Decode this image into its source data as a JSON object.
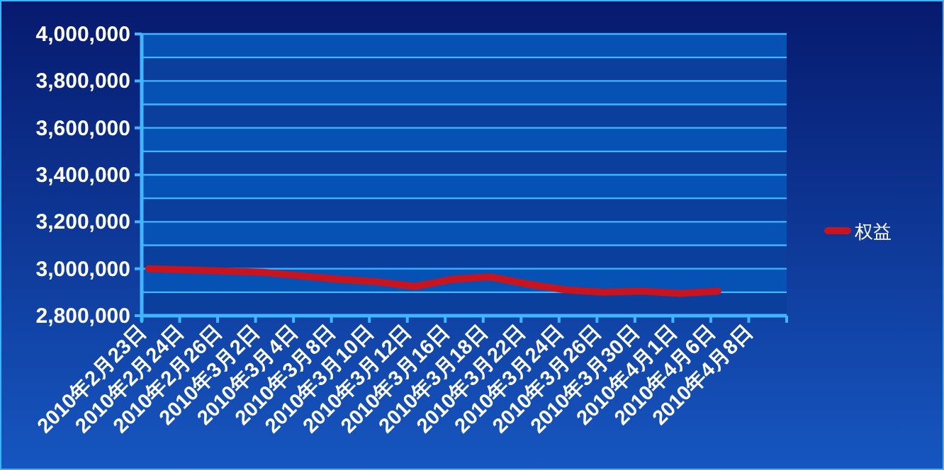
{
  "chart_data": {
    "type": "line",
    "categories": [
      "2010年2月23日",
      "2010年2月24日",
      "2010年2月26日",
      "2010年3月2日",
      "2010年3月4日",
      "2010年3月8日",
      "2010年3月10日",
      "2010年3月12日",
      "2010年3月16日",
      "2010年3月18日",
      "2010年3月22日",
      "2010年3月24日",
      "2010年3月26日",
      "2010年3月30日",
      "2010年4月1日",
      "2010年4月6日",
      "2010年4月8日"
    ],
    "series": [
      {
        "name": "权益",
        "color": "#c8141e",
        "values": [
          3000000,
          2995000,
          2990000,
          2985000,
          2970000,
          2955000,
          2945000,
          2925000,
          2955000,
          2965000,
          2935000,
          2910000,
          2900000,
          2905000,
          2895000,
          2905000,
          null
        ]
      }
    ],
    "ylim": [
      2800000,
      4000000
    ],
    "yticks": [
      {
        "value": 2800000,
        "label": "2,800,000"
      },
      {
        "value": 2900000,
        "label": null
      },
      {
        "value": 3000000,
        "label": "3,000,000"
      },
      {
        "value": 3100000,
        "label": null
      },
      {
        "value": 3200000,
        "label": "3,200,000"
      },
      {
        "value": 3300000,
        "label": null
      },
      {
        "value": 3400000,
        "label": "3,400,000"
      },
      {
        "value": 3500000,
        "label": null
      },
      {
        "value": 3600000,
        "label": "3,600,000"
      },
      {
        "value": 3700000,
        "label": null
      },
      {
        "value": 3800000,
        "label": "3,800,000"
      },
      {
        "value": 3900000,
        "label": null
      },
      {
        "value": 4000000,
        "label": "4,000,000"
      }
    ],
    "bands": [
      {
        "axis": "y",
        "from": 2800000,
        "to": 2900000,
        "color": "#0a3f9e"
      },
      {
        "axis": "y",
        "from": 2900000,
        "to": 3000000,
        "color": "#0552b4"
      },
      {
        "axis": "y",
        "from": 3000000,
        "to": 3100000,
        "color": "#0a3f9e"
      },
      {
        "axis": "y",
        "from": 3100000,
        "to": 3200000,
        "color": "#0552b4"
      },
      {
        "axis": "y",
        "from": 3200000,
        "to": 3300000,
        "color": "#0a3f9e"
      },
      {
        "axis": "y",
        "from": 3300000,
        "to": 3400000,
        "color": "#0552b4"
      },
      {
        "axis": "y",
        "from": 3400000,
        "to": 3500000,
        "color": "#0a3f9e"
      },
      {
        "axis": "y",
        "from": 3500000,
        "to": 3600000,
        "color": "#0552b4"
      },
      {
        "axis": "y",
        "from": 3600000,
        "to": 3700000,
        "color": "#0a3f9e"
      },
      {
        "axis": "y",
        "from": 3700000,
        "to": 3800000,
        "color": "#0552b4"
      },
      {
        "axis": "y",
        "from": 3800000,
        "to": 3900000,
        "color": "#0a3f9e"
      },
      {
        "axis": "y",
        "from": 3900000,
        "to": 4000000,
        "color": "#0552b4"
      }
    ],
    "grid": "y",
    "legend": "right",
    "marker": "none",
    "line_style": "solid"
  }
}
